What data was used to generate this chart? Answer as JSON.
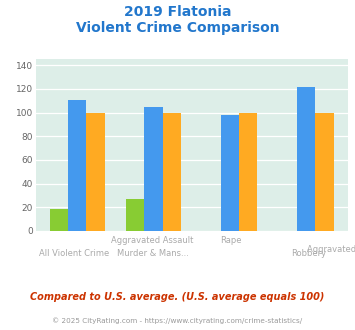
{
  "title_line1": "2019 Flatonia",
  "title_line2": "Violent Crime Comparison",
  "cat_labels_top": [
    "",
    "Aggravated Assault",
    "",
    ""
  ],
  "cat_labels_bot": [
    "All Violent Crime",
    "Murder & Mans...",
    "",
    "Robbery"
  ],
  "cat_labels_top2": [
    "",
    "",
    "Rape",
    ""
  ],
  "flatonia": [
    19,
    27,
    0,
    0
  ],
  "texas": [
    111,
    105,
    98,
    122
  ],
  "national": [
    100,
    100,
    100,
    100
  ],
  "flatonia_color": "#88cc33",
  "texas_color": "#4499ee",
  "national_color": "#ffaa22",
  "ylim": [
    0,
    145
  ],
  "yticks": [
    0,
    20,
    40,
    60,
    80,
    100,
    120,
    140
  ],
  "plot_bg": "#ddeee8",
  "title_color": "#2277cc",
  "subtitle_note": "Compared to U.S. average. (U.S. average equals 100)",
  "footer": "© 2025 CityRating.com - https://www.cityrating.com/crime-statistics/",
  "subtitle_color": "#cc3300",
  "footer_color": "#999999",
  "label_color": "#aaaaaa"
}
